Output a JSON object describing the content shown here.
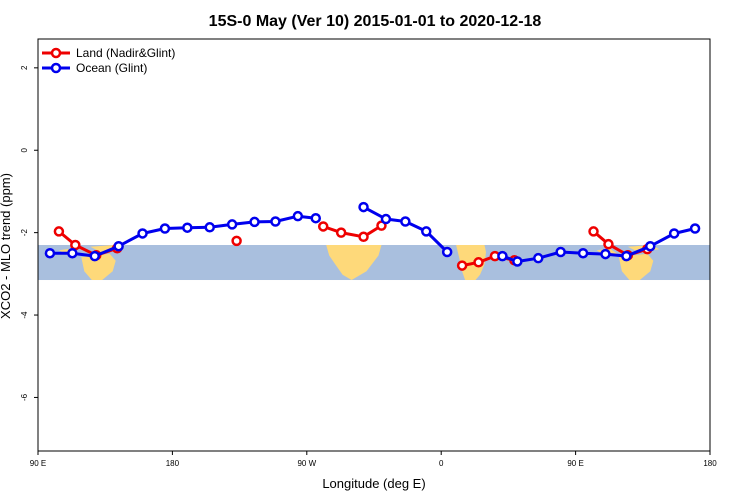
{
  "chart_data": {
    "type": "line",
    "title": "15S-0 May (Ver 10)   2015-01-01 to 2020-12-18",
    "xlabel": "Longitude (deg E)",
    "ylabel": "XCO2 - MLO trend (ppm)",
    "xlim": [
      90,
      540
    ],
    "ylim": [
      -7.3,
      2.7
    ],
    "x_ticks": [
      {
        "value": 90,
        "label": "90 E"
      },
      {
        "value": 180,
        "label": "180"
      },
      {
        "value": 270,
        "label": "90 W"
      },
      {
        "value": 360,
        "label": "0"
      },
      {
        "value": 450,
        "label": "90 E"
      },
      {
        "value": 540,
        "label": "180"
      }
    ],
    "y_ticks": [
      {
        "value": 2,
        "label": "2"
      },
      {
        "value": 0,
        "label": "0"
      },
      {
        "value": -2,
        "label": "-2"
      },
      {
        "value": -4,
        "label": "-4"
      },
      {
        "value": -6,
        "label": "-6"
      }
    ],
    "latitude_band": {
      "y_top": -2.3,
      "y_bottom": -3.15,
      "ocean_color": "#a9bfde",
      "land_color": "#fed97a"
    },
    "legend": {
      "position": "top-left"
    },
    "series": [
      {
        "name": "Land (Nadir&Glint)",
        "color": "#ee0000",
        "segments": [
          [
            [
              104,
              -1.97
            ],
            [
              115,
              -2.3
            ],
            [
              129,
              -2.55
            ],
            [
              143,
              -2.38
            ]
          ],
          [
            [
              223,
              -2.2
            ]
          ],
          [
            [
              281,
              -1.85
            ],
            [
              293,
              -2.0
            ],
            [
              308,
              -2.1
            ],
            [
              320,
              -1.83
            ]
          ],
          [
            [
              374,
              -2.8
            ],
            [
              385,
              -2.72
            ],
            [
              396,
              -2.57
            ],
            [
              409,
              -2.67
            ]
          ],
          [
            [
              462,
              -1.97
            ],
            [
              472,
              -2.28
            ],
            [
              485,
              -2.55
            ],
            [
              498,
              -2.4
            ]
          ]
        ]
      },
      {
        "name": "Ocean (Glint)",
        "color": "#0000ee",
        "segments": [
          [
            [
              98,
              -2.5
            ],
            [
              113,
              -2.5
            ],
            [
              128,
              -2.57
            ],
            [
              144,
              -2.33
            ],
            [
              160,
              -2.02
            ],
            [
              175,
              -1.9
            ],
            [
              190,
              -1.88
            ],
            [
              205,
              -1.87
            ],
            [
              220,
              -1.8
            ],
            [
              235,
              -1.74
            ],
            [
              249,
              -1.73
            ],
            [
              264,
              -1.6
            ],
            [
              276,
              -1.65
            ]
          ],
          [
            [
              308,
              -1.38
            ],
            [
              323,
              -1.67
            ],
            [
              336,
              -1.73
            ],
            [
              350,
              -1.97
            ],
            [
              364,
              -2.47
            ]
          ],
          [
            [
              401,
              -2.57
            ],
            [
              411,
              -2.7
            ],
            [
              425,
              -2.62
            ],
            [
              440,
              -2.47
            ],
            [
              455,
              -2.5
            ],
            [
              470,
              -2.52
            ],
            [
              484,
              -2.57
            ],
            [
              500,
              -2.33
            ],
            [
              516,
              -2.02
            ],
            [
              530,
              -1.9
            ]
          ]
        ]
      }
    ]
  }
}
